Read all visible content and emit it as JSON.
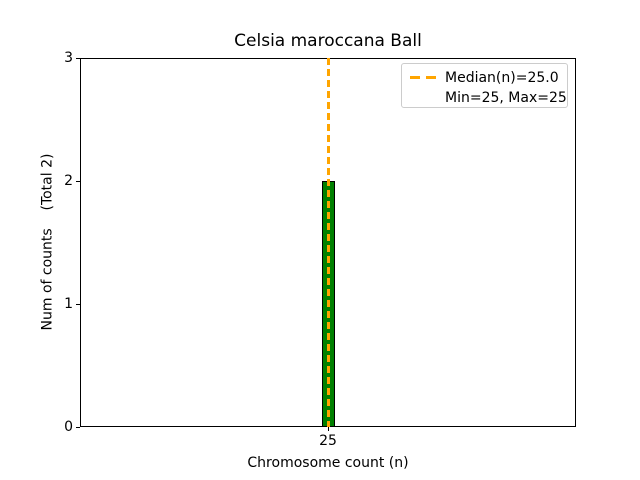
{
  "chart_data": {
    "type": "bar",
    "title": "Celsia maroccana Ball",
    "xlabel": "Chromosome count (n)",
    "ylabel": "Num of counts    (Total 2)",
    "categories": [
      25
    ],
    "values": [
      2
    ],
    "total_counts": 2,
    "median_n": 25.0,
    "min_n": 25,
    "max_n": 25,
    "xlim": [
      24.5,
      25.5
    ],
    "ylim": [
      0,
      3
    ],
    "yticks": [
      0,
      1,
      2,
      3
    ],
    "xticks": [
      25
    ],
    "grid": false,
    "legend_position": "upper right",
    "legend_entries": [
      {
        "label": "Median(n)=25.0",
        "handle": "orange-dashed-line"
      },
      {
        "label": "Min=25, Max=25",
        "handle": "none"
      }
    ],
    "colors": {
      "bar_fill": "#008000",
      "bar_edge": "#000000",
      "median_line": "#FFA500",
      "legend_edge": "#CCCCCC",
      "axis": "#000000"
    }
  },
  "legend": {
    "median_label": "Median(n)=25.0",
    "minmax_label": "Min=25, Max=25"
  }
}
